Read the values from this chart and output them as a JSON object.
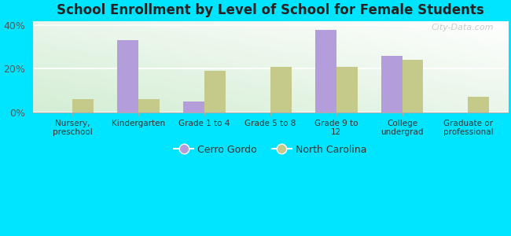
{
  "title": "School Enrollment by Level of School for Female Students",
  "categories": [
    "Nursery,\npreschool",
    "Kindergarten",
    "Grade 1 to 4",
    "Grade 5 to 8",
    "Grade 9 to\n12",
    "College\nundergrad",
    "Graduate or\nprofessional"
  ],
  "cerro_gordo": [
    0.0,
    33.0,
    5.0,
    0.0,
    38.0,
    26.0,
    0.0
  ],
  "north_carolina": [
    6.0,
    6.0,
    19.0,
    21.0,
    21.0,
    24.0,
    7.0
  ],
  "cerro_gordo_color": "#b39ddb",
  "north_carolina_color": "#c5c98a",
  "background_color": "#00e5ff",
  "ylim": [
    0,
    42
  ],
  "yticks": [
    0,
    20,
    40
  ],
  "ytick_labels": [
    "0%",
    "20%",
    "40%"
  ],
  "bar_width": 0.32,
  "legend_cerro": "Cerro Gordo",
  "legend_nc": "North Carolina",
  "watermark": "City-Data.com"
}
